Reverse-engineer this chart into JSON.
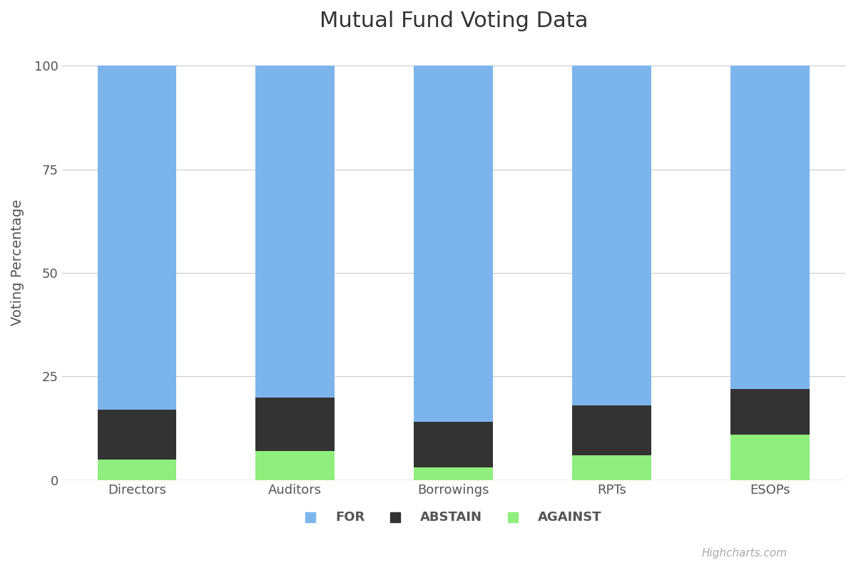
{
  "categories": [
    "Directors",
    "Auditors",
    "Borrowings",
    "RPTs",
    "ESOPs"
  ],
  "against": [
    5,
    7,
    3,
    6,
    11
  ],
  "abstain": [
    12,
    13,
    11,
    12,
    11
  ],
  "for_vals": [
    83,
    80,
    86,
    82,
    78
  ],
  "color_for": "#7cb5ec",
  "color_abstain": "#333333",
  "color_against": "#90ee7e",
  "title": "Mutual Fund Voting Data",
  "ylabel": "Voting Percentage",
  "yticks": [
    0,
    25,
    50,
    75,
    100
  ],
  "legend_labels": [
    "FOR",
    "ABSTAIN",
    "AGAINST"
  ],
  "background_color": "#ffffff",
  "grid_color": "#cccccc",
  "title_fontsize": 22,
  "axis_label_fontsize": 14,
  "tick_fontsize": 13,
  "legend_fontsize": 13,
  "bar_width": 0.5,
  "watermark": "Highcharts.com"
}
